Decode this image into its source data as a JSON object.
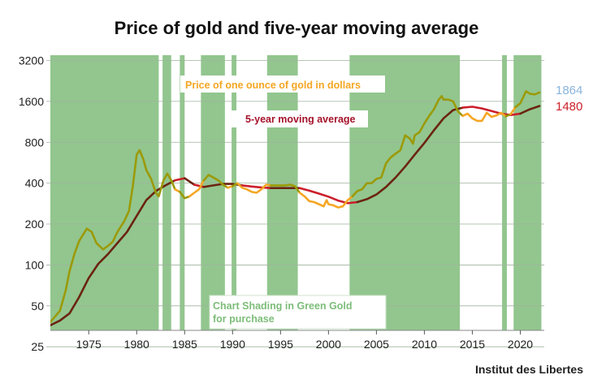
{
  "chart_data": {
    "type": "line",
    "title": "Price of gold and five-year moving average",
    "xlim": [
      1971,
      2022.5
    ],
    "ylim": [
      33,
      3500
    ],
    "yscale": "log",
    "x_ticks": [
      1975,
      1980,
      1985,
      1990,
      1995,
      2000,
      2005,
      2010,
      2015,
      2020
    ],
    "y_ticks": [
      25,
      50,
      100,
      200,
      400,
      800,
      1600,
      3200
    ],
    "shading_label": "Chart Shading in Green Gold for purchase",
    "shading_color": "#92c68e",
    "shaded_periods": [
      [
        1971.0,
        1982.3
      ],
      [
        1982.7,
        1983.6
      ],
      [
        1984.5,
        1985.0
      ],
      [
        1986.7,
        1989.2
      ],
      [
        1989.9,
        1990.4
      ],
      [
        1993.6,
        1996.8
      ],
      [
        2002.2,
        2013.7
      ],
      [
        2018.1,
        2018.6
      ],
      [
        2019.3,
        2022.2
      ]
    ],
    "series": [
      {
        "name": "Price of one ounce of gold in dollars",
        "color": "#f5a623",
        "dark_color": "#9b9a08",
        "last_value": "1864",
        "last_value_color": "#8ab4dc",
        "points": [
          [
            1971.0,
            38
          ],
          [
            1972.0,
            46
          ],
          [
            1972.6,
            65
          ],
          [
            1973.0,
            90
          ],
          [
            1973.5,
            120
          ],
          [
            1974.0,
            150
          ],
          [
            1974.8,
            185
          ],
          [
            1975.3,
            175
          ],
          [
            1975.8,
            145
          ],
          [
            1976.5,
            130
          ],
          [
            1977.0,
            138
          ],
          [
            1977.5,
            148
          ],
          [
            1978.0,
            175
          ],
          [
            1978.7,
            210
          ],
          [
            1979.2,
            250
          ],
          [
            1979.6,
            380
          ],
          [
            1980.0,
            650
          ],
          [
            1980.3,
            700
          ],
          [
            1980.7,
            600
          ],
          [
            1981.0,
            500
          ],
          [
            1981.5,
            430
          ],
          [
            1982.0,
            340
          ],
          [
            1982.3,
            320
          ],
          [
            1982.8,
            420
          ],
          [
            1983.2,
            470
          ],
          [
            1983.6,
            420
          ],
          [
            1984.0,
            360
          ],
          [
            1984.5,
            345
          ],
          [
            1985.0,
            310
          ],
          [
            1985.5,
            320
          ],
          [
            1986.0,
            340
          ],
          [
            1986.5,
            360
          ],
          [
            1987.0,
            420
          ],
          [
            1987.5,
            460
          ],
          [
            1988.0,
            440
          ],
          [
            1988.5,
            420
          ],
          [
            1989.0,
            390
          ],
          [
            1989.5,
            370
          ],
          [
            1990.0,
            380
          ],
          [
            1990.5,
            400
          ],
          [
            1991.0,
            370
          ],
          [
            1991.5,
            360
          ],
          [
            1992.0,
            345
          ],
          [
            1992.5,
            340
          ],
          [
            1993.0,
            360
          ],
          [
            1993.5,
            390
          ],
          [
            1994.0,
            385
          ],
          [
            1994.5,
            385
          ],
          [
            1995.0,
            385
          ],
          [
            1995.5,
            385
          ],
          [
            1996.0,
            390
          ],
          [
            1996.5,
            380
          ],
          [
            1997.0,
            340
          ],
          [
            1997.5,
            320
          ],
          [
            1998.0,
            295
          ],
          [
            1998.5,
            290
          ],
          [
            1999.0,
            280
          ],
          [
            1999.5,
            270
          ],
          [
            1999.8,
            300
          ],
          [
            2000.0,
            280
          ],
          [
            2000.5,
            275
          ],
          [
            2001.0,
            265
          ],
          [
            2001.5,
            270
          ],
          [
            2002.0,
            300
          ],
          [
            2002.5,
            320
          ],
          [
            2003.0,
            350
          ],
          [
            2003.5,
            360
          ],
          [
            2004.0,
            400
          ],
          [
            2004.5,
            400
          ],
          [
            2005.0,
            430
          ],
          [
            2005.5,
            440
          ],
          [
            2006.0,
            560
          ],
          [
            2006.5,
            620
          ],
          [
            2007.0,
            660
          ],
          [
            2007.5,
            700
          ],
          [
            2008.0,
            900
          ],
          [
            2008.5,
            850
          ],
          [
            2008.8,
            780
          ],
          [
            2009.0,
            900
          ],
          [
            2009.5,
            950
          ],
          [
            2010.0,
            1100
          ],
          [
            2010.5,
            1250
          ],
          [
            2011.0,
            1400
          ],
          [
            2011.5,
            1650
          ],
          [
            2011.8,
            1750
          ],
          [
            2012.0,
            1650
          ],
          [
            2012.5,
            1650
          ],
          [
            2013.0,
            1600
          ],
          [
            2013.5,
            1350
          ],
          [
            2014.0,
            1250
          ],
          [
            2014.5,
            1300
          ],
          [
            2015.0,
            1200
          ],
          [
            2015.5,
            1150
          ],
          [
            2016.0,
            1150
          ],
          [
            2016.5,
            1320
          ],
          [
            2017.0,
            1230
          ],
          [
            2017.5,
            1260
          ],
          [
            2018.0,
            1320
          ],
          [
            2018.5,
            1240
          ],
          [
            2019.0,
            1290
          ],
          [
            2019.5,
            1450
          ],
          [
            2020.0,
            1550
          ],
          [
            2020.6,
            1900
          ],
          [
            2021.0,
            1820
          ],
          [
            2021.5,
            1800
          ],
          [
            2022.0,
            1860
          ]
        ]
      },
      {
        "name": "5-year moving average",
        "color": "#cc1f2a",
        "dark_color": "#6b2410",
        "last_value": "1480",
        "last_value_color": "#cc1f2a",
        "points": [
          [
            1971.0,
            36
          ],
          [
            1972.0,
            39
          ],
          [
            1973.0,
            44
          ],
          [
            1974.0,
            58
          ],
          [
            1975.0,
            80
          ],
          [
            1976.0,
            102
          ],
          [
            1977.0,
            120
          ],
          [
            1978.0,
            145
          ],
          [
            1979.0,
            175
          ],
          [
            1980.0,
            230
          ],
          [
            1981.0,
            300
          ],
          [
            1982.0,
            350
          ],
          [
            1983.0,
            385
          ],
          [
            1984.0,
            420
          ],
          [
            1985.0,
            435
          ],
          [
            1986.0,
            390
          ],
          [
            1987.0,
            375
          ],
          [
            1988.0,
            385
          ],
          [
            1989.0,
            395
          ],
          [
            1990.0,
            395
          ],
          [
            1991.0,
            385
          ],
          [
            1992.0,
            378
          ],
          [
            1993.0,
            372
          ],
          [
            1994.0,
            368
          ],
          [
            1995.0,
            368
          ],
          [
            1996.0,
            368
          ],
          [
            1997.0,
            368
          ],
          [
            1998.0,
            352
          ],
          [
            1999.0,
            335
          ],
          [
            2000.0,
            318
          ],
          [
            2001.0,
            298
          ],
          [
            2002.0,
            285
          ],
          [
            2003.0,
            290
          ],
          [
            2004.0,
            305
          ],
          [
            2005.0,
            330
          ],
          [
            2006.0,
            375
          ],
          [
            2007.0,
            440
          ],
          [
            2008.0,
            530
          ],
          [
            2009.0,
            650
          ],
          [
            2010.0,
            790
          ],
          [
            2011.0,
            980
          ],
          [
            2012.0,
            1200
          ],
          [
            2013.0,
            1380
          ],
          [
            2014.0,
            1440
          ],
          [
            2015.0,
            1460
          ],
          [
            2016.0,
            1420
          ],
          [
            2017.0,
            1360
          ],
          [
            2018.0,
            1300
          ],
          [
            2019.0,
            1270
          ],
          [
            2020.0,
            1300
          ],
          [
            2021.0,
            1400
          ],
          [
            2022.0,
            1480
          ]
        ]
      }
    ]
  },
  "source": "Institut des Libertes"
}
